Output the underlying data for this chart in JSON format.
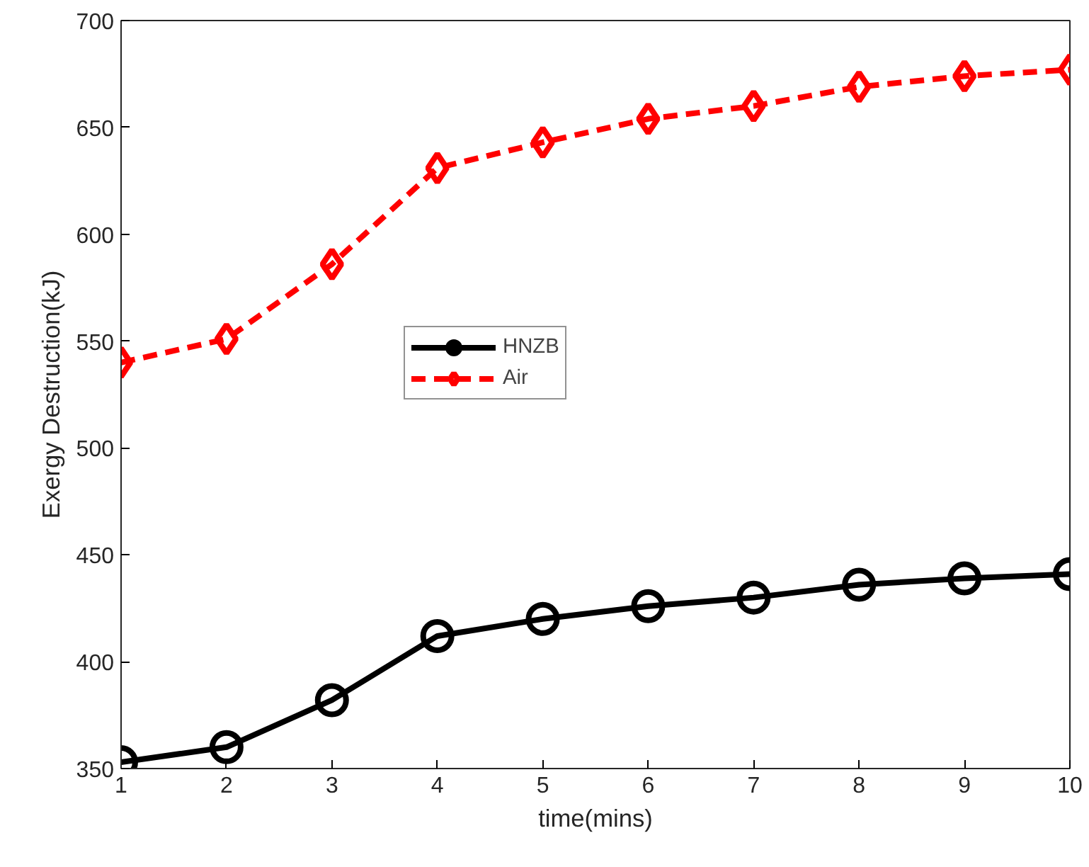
{
  "chart_data": {
    "type": "line",
    "xlabel": "time(mins)",
    "ylabel": "Exergy Destruction(kJ)",
    "x": [
      1,
      2,
      3,
      4,
      5,
      6,
      7,
      8,
      9,
      10
    ],
    "series": [
      {
        "name": "HNZB",
        "color": "#000000",
        "marker": "circle",
        "line_style": "solid",
        "values": [
          353,
          360,
          382,
          412,
          420,
          426,
          430,
          436,
          439,
          441
        ]
      },
      {
        "name": "Air",
        "color": "#ff0000",
        "marker": "diamond",
        "line_style": "dashed",
        "values": [
          540,
          551,
          586,
          631,
          643,
          654,
          660,
          669,
          674,
          677
        ]
      }
    ],
    "xlim": [
      1,
      10
    ],
    "xticks": [
      1,
      2,
      3,
      4,
      5,
      6,
      7,
      8,
      9,
      10
    ],
    "ylim": [
      350,
      700
    ],
    "yticks": [
      350,
      400,
      450,
      500,
      550,
      600,
      650,
      700
    ],
    "grid": false,
    "legend": "center"
  }
}
